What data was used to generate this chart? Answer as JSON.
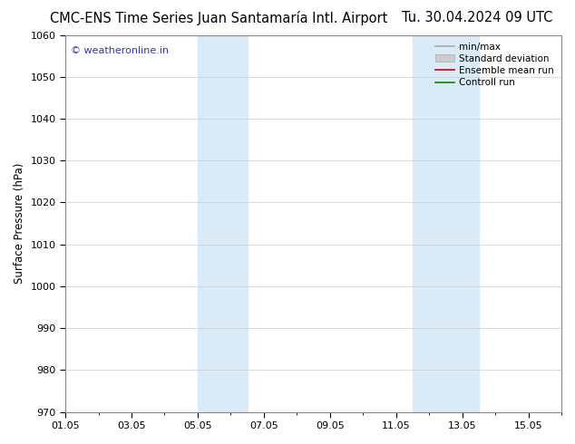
{
  "title_left": "CMC-ENS Time Series Juan Santamaría Intl. Airport",
  "title_right": "Tu. 30.04.2024 09 UTC",
  "ylabel": "Surface Pressure (hPa)",
  "ylim": [
    970,
    1060
  ],
  "yticks": [
    970,
    980,
    990,
    1000,
    1010,
    1020,
    1030,
    1040,
    1050,
    1060
  ],
  "xlim": [
    0,
    15
  ],
  "xtick_labels": [
    "01.05",
    "03.05",
    "05.05",
    "07.05",
    "09.05",
    "11.05",
    "13.05",
    "15.05"
  ],
  "xtick_positions": [
    0,
    2,
    4,
    6,
    8,
    10,
    12,
    14
  ],
  "shaded_regions": [
    {
      "start": 4.0,
      "end": 5.5,
      "color": "#daeaf7"
    },
    {
      "start": 10.5,
      "end": 12.5,
      "color": "#daeaf7"
    }
  ],
  "watermark_text": "© weatheronline.in",
  "watermark_color": "#3333bb",
  "legend_items": [
    {
      "label": "min/max",
      "type": "line",
      "color": "#aaaaaa",
      "lw": 1.2
    },
    {
      "label": "Standard deviation",
      "type": "patch",
      "color": "#cccccc"
    },
    {
      "label": "Ensemble mean run",
      "type": "line",
      "color": "#cc0000",
      "lw": 1.2
    },
    {
      "label": "Controll run",
      "type": "line",
      "color": "#008800",
      "lw": 1.2
    }
  ],
  "bg_color": "#ffffff",
  "grid_color": "#cccccc",
  "grid_lw": 0.5,
  "title_fontsize": 10.5,
  "label_fontsize": 8.5,
  "tick_fontsize": 8.0,
  "legend_fontsize": 7.5,
  "watermark_fontsize": 8.0
}
